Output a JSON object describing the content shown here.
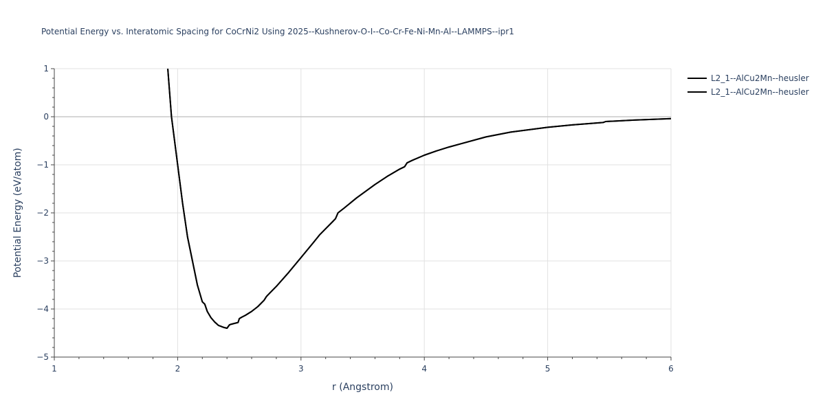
{
  "chart_data": {
    "type": "line",
    "title": "Potential Energy vs. Interatomic Spacing for CoCrNi2 Using 2025--Kushnerov-O-I--Co-Cr-Fe-Ni-Mn-Al--LAMMPS--ipr1",
    "xlabel": "r (Angstrom)",
    "ylabel": "Potential Energy (eV/atom)",
    "xlim": [
      1,
      6
    ],
    "ylim": [
      -5,
      1
    ],
    "x_ticks": [
      1,
      2,
      3,
      4,
      5,
      6
    ],
    "y_ticks": [
      1,
      0,
      -1,
      -2,
      -3,
      -4,
      -5
    ],
    "x_tick_labels": [
      "1",
      "2",
      "3",
      "4",
      "5",
      "6"
    ],
    "y_tick_labels": [
      "1",
      "0",
      "−1",
      "−2",
      "−3",
      "−4",
      "−5"
    ],
    "grid": true,
    "legend_position": "top-right",
    "series": [
      {
        "name": "L2_1--AlCu2Mn--heusler",
        "color": "#000000",
        "x": [
          1.92,
          1.95,
          1.98,
          2.0,
          2.04,
          2.08,
          2.12,
          2.16,
          2.2,
          2.22,
          2.24,
          2.27,
          2.3,
          2.33,
          2.37,
          2.4,
          2.42,
          2.43,
          2.46,
          2.49,
          2.5,
          2.52,
          2.55,
          2.6,
          2.65,
          2.7,
          2.72,
          2.75,
          2.8,
          2.9,
          3.0,
          3.1,
          3.15,
          3.2,
          3.25,
          3.28,
          3.3,
          3.35,
          3.45,
          3.6,
          3.7,
          3.8,
          3.84,
          3.86,
          3.9,
          4.0,
          4.1,
          4.2,
          4.3,
          4.5,
          4.7,
          5.0,
          5.2,
          5.45,
          5.47,
          5.7,
          6.0
        ],
        "y": [
          1.0,
          0.0,
          -0.6,
          -1.0,
          -1.8,
          -2.5,
          -3.0,
          -3.5,
          -3.85,
          -3.9,
          -4.05,
          -4.18,
          -4.27,
          -4.34,
          -4.38,
          -4.4,
          -4.33,
          -4.32,
          -4.3,
          -4.28,
          -4.2,
          -4.17,
          -4.13,
          -4.05,
          -3.95,
          -3.82,
          -3.74,
          -3.66,
          -3.53,
          -3.24,
          -2.93,
          -2.62,
          -2.46,
          -2.33,
          -2.2,
          -2.12,
          -2.0,
          -1.9,
          -1.69,
          -1.41,
          -1.24,
          -1.09,
          -1.04,
          -0.96,
          -0.91,
          -0.8,
          -0.71,
          -0.63,
          -0.56,
          -0.42,
          -0.32,
          -0.22,
          -0.17,
          -0.12,
          -0.1,
          -0.07,
          -0.04
        ]
      },
      {
        "name": "L2_1--AlCu2Mn--heusler",
        "color": "#000000",
        "x": [
          1.92,
          1.95,
          1.98,
          2.0,
          2.04,
          2.08,
          2.12,
          2.16,
          2.2,
          2.22,
          2.24,
          2.27,
          2.3,
          2.33,
          2.37,
          2.4,
          2.42,
          2.43,
          2.46,
          2.49,
          2.5,
          2.52,
          2.55,
          2.6,
          2.65,
          2.7,
          2.72,
          2.75,
          2.8,
          2.9,
          3.0,
          3.1,
          3.15,
          3.2,
          3.25,
          3.28,
          3.3,
          3.35,
          3.45,
          3.6,
          3.7,
          3.8,
          3.84,
          3.86,
          3.9,
          4.0,
          4.1,
          4.2,
          4.3,
          4.5,
          4.7,
          5.0,
          5.2,
          5.45,
          5.47,
          5.7,
          6.0
        ],
        "y": [
          1.0,
          0.0,
          -0.6,
          -1.0,
          -1.8,
          -2.5,
          -3.0,
          -3.5,
          -3.85,
          -3.9,
          -4.05,
          -4.18,
          -4.27,
          -4.34,
          -4.38,
          -4.4,
          -4.33,
          -4.32,
          -4.3,
          -4.28,
          -4.2,
          -4.17,
          -4.13,
          -4.05,
          -3.95,
          -3.82,
          -3.74,
          -3.66,
          -3.53,
          -3.24,
          -2.93,
          -2.62,
          -2.46,
          -2.33,
          -2.2,
          -2.12,
          -2.0,
          -1.9,
          -1.69,
          -1.41,
          -1.24,
          -1.09,
          -1.04,
          -0.96,
          -0.91,
          -0.8,
          -0.71,
          -0.63,
          -0.56,
          -0.42,
          -0.32,
          -0.22,
          -0.17,
          -0.12,
          -0.1,
          -0.07,
          -0.04
        ]
      }
    ]
  }
}
